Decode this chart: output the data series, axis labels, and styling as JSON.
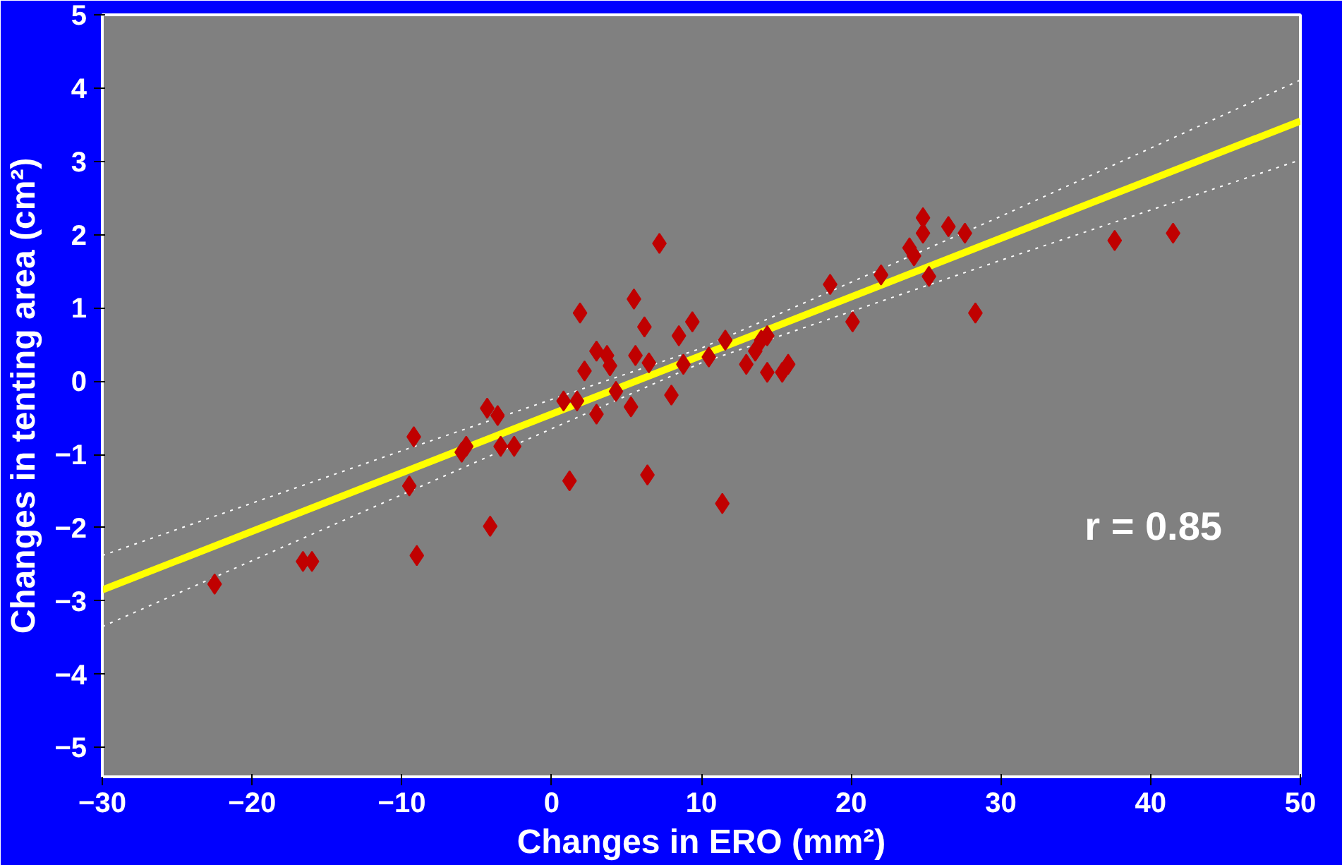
{
  "chart_data": {
    "type": "scatter",
    "xlabel": "Changes in ERO (mm²)",
    "ylabel": "Changes in tenting area (cm²)",
    "xlim": [
      -30,
      50
    ],
    "xticks": [
      -30,
      -20,
      -10,
      0,
      10,
      20,
      30,
      40,
      50
    ],
    "ylim": [
      -5.4,
      5
    ],
    "yticks": [
      -5,
      -4,
      -3,
      -2,
      -1,
      0,
      1,
      2,
      3,
      4,
      5
    ],
    "grid": false,
    "annotations": [
      "r = 0.85"
    ],
    "series": [
      {
        "type": "line",
        "color": "#ffffff",
        "line_style": "dotted",
        "x": [
          -30,
          -10,
          10,
          30,
          50
        ],
        "values": [
          -2.38,
          -0.95,
          0.45,
          2.25,
          4.11
        ]
      },
      {
        "type": "line",
        "color": "#ffffff",
        "line_style": "dotted",
        "x": [
          -30,
          -10,
          10,
          30,
          50
        ],
        "values": [
          -3.35,
          -1.55,
          0.25,
          1.65,
          3.02
        ]
      },
      {
        "type": "line",
        "color": "#ffff00",
        "line_style": "solid",
        "x": [
          -30,
          -10,
          10,
          30,
          50
        ],
        "values": [
          -2.85,
          -1.25,
          0.35,
          1.95,
          3.55
        ]
      },
      {
        "color": "#c00000",
        "marker": "diamond",
        "x": [
          -22.5,
          -16.6,
          -16.0,
          -9.0,
          -9.2,
          -9.5,
          -5.7,
          -6.0,
          -4.3,
          -3.6,
          -3.4,
          -2.5,
          -4.1,
          1.2,
          0.8,
          1.7,
          1.9,
          2.2,
          3.0,
          3.7,
          3.9,
          5.6,
          6.5,
          3.0,
          4.3,
          5.3,
          5.5,
          6.2,
          7.2,
          8.5,
          8.0,
          6.4,
          8.8,
          9.4,
          10.5,
          11.6,
          11.4,
          13.0,
          13.6,
          14.0,
          14.4,
          14.4,
          15.4,
          15.8,
          18.6,
          20.1,
          22.0,
          23.9,
          24.2,
          24.8,
          24.8,
          25.2,
          26.5,
          27.6,
          28.3,
          37.6,
          41.5
        ],
        "values": [
          -2.77,
          -2.46,
          -2.46,
          -2.38,
          -0.76,
          -1.43,
          -0.89,
          -0.97,
          -0.37,
          -0.47,
          -0.89,
          -0.89,
          -1.98,
          -1.36,
          -0.27,
          -0.27,
          0.93,
          0.14,
          0.41,
          0.35,
          0.21,
          0.35,
          0.25,
          -0.45,
          -0.14,
          -0.35,
          1.12,
          0.74,
          1.88,
          0.62,
          -0.19,
          -1.28,
          0.23,
          0.81,
          0.33,
          0.56,
          -1.67,
          0.23,
          0.41,
          0.56,
          0.62,
          0.12,
          0.12,
          0.23,
          1.32,
          0.81,
          1.45,
          1.82,
          1.71,
          2.23,
          2.02,
          1.43,
          2.11,
          2.02,
          0.93,
          1.92,
          2.02
        ]
      }
    ]
  }
}
